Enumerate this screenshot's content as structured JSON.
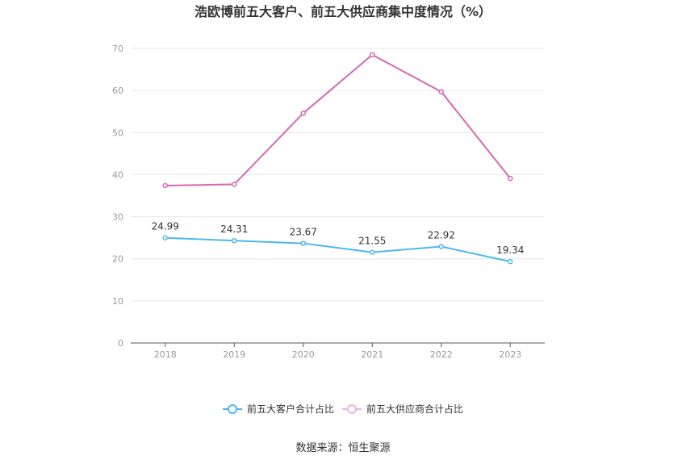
{
  "chart_data": {
    "type": "line",
    "title": "浩欧博前五大客户、前五大供应商集中度情况（%）",
    "categories": [
      "2018",
      "2019",
      "2020",
      "2021",
      "2022",
      "2023"
    ],
    "ylim": [
      0,
      70
    ],
    "yticks": [
      "0",
      "10",
      "20",
      "30",
      "40",
      "50",
      "60",
      "70"
    ],
    "grid": true,
    "legend_position": "bottom",
    "series": [
      {
        "name": "前五大客户合计占比",
        "color": "#4db8f0",
        "values": [
          24.99,
          24.31,
          23.67,
          21.55,
          22.92,
          19.34
        ],
        "labels": [
          "24.99",
          "24.31",
          "23.67",
          "21.55",
          "22.92",
          "19.34"
        ]
      },
      {
        "name": "前五大供应商合计占比",
        "color": "#d966b4",
        "values": [
          37.4,
          37.7,
          54.6,
          68.5,
          59.7,
          39.1
        ]
      }
    ],
    "source": "数据来源：恒生聚源"
  }
}
